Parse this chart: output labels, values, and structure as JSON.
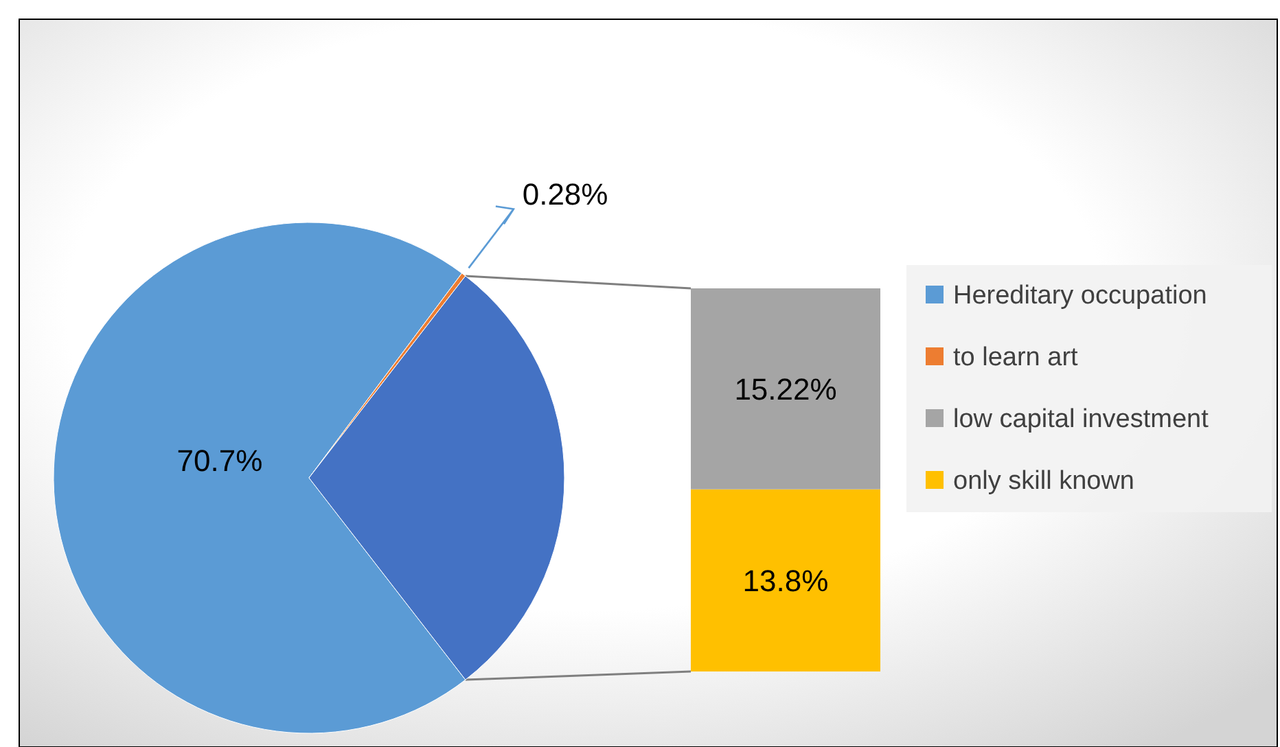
{
  "chart_data": [
    {
      "type": "pie",
      "categories": [
        "Hereditary occupation",
        "to learn art",
        null
      ],
      "values": [
        70.7,
        0.28,
        29.02
      ],
      "colors": [
        "#5b9bd5",
        "#ed7d31",
        "#4472c4"
      ],
      "value_labels": [
        "70.7%",
        "0.28%",
        null
      ],
      "legend": "right"
    },
    {
      "type": "bar",
      "stacked": true,
      "categories": [
        null
      ],
      "series": [
        {
          "name": "only skill known",
          "color": "#ffc000",
          "values": [
            13.8
          ],
          "value_labels": [
            "13.8%"
          ]
        },
        {
          "name": "low capital investment",
          "color": "#a5a5a5",
          "values": [
            15.22
          ],
          "value_labels": [
            "15.22%"
          ]
        }
      ],
      "legend": "right"
    }
  ]
}
